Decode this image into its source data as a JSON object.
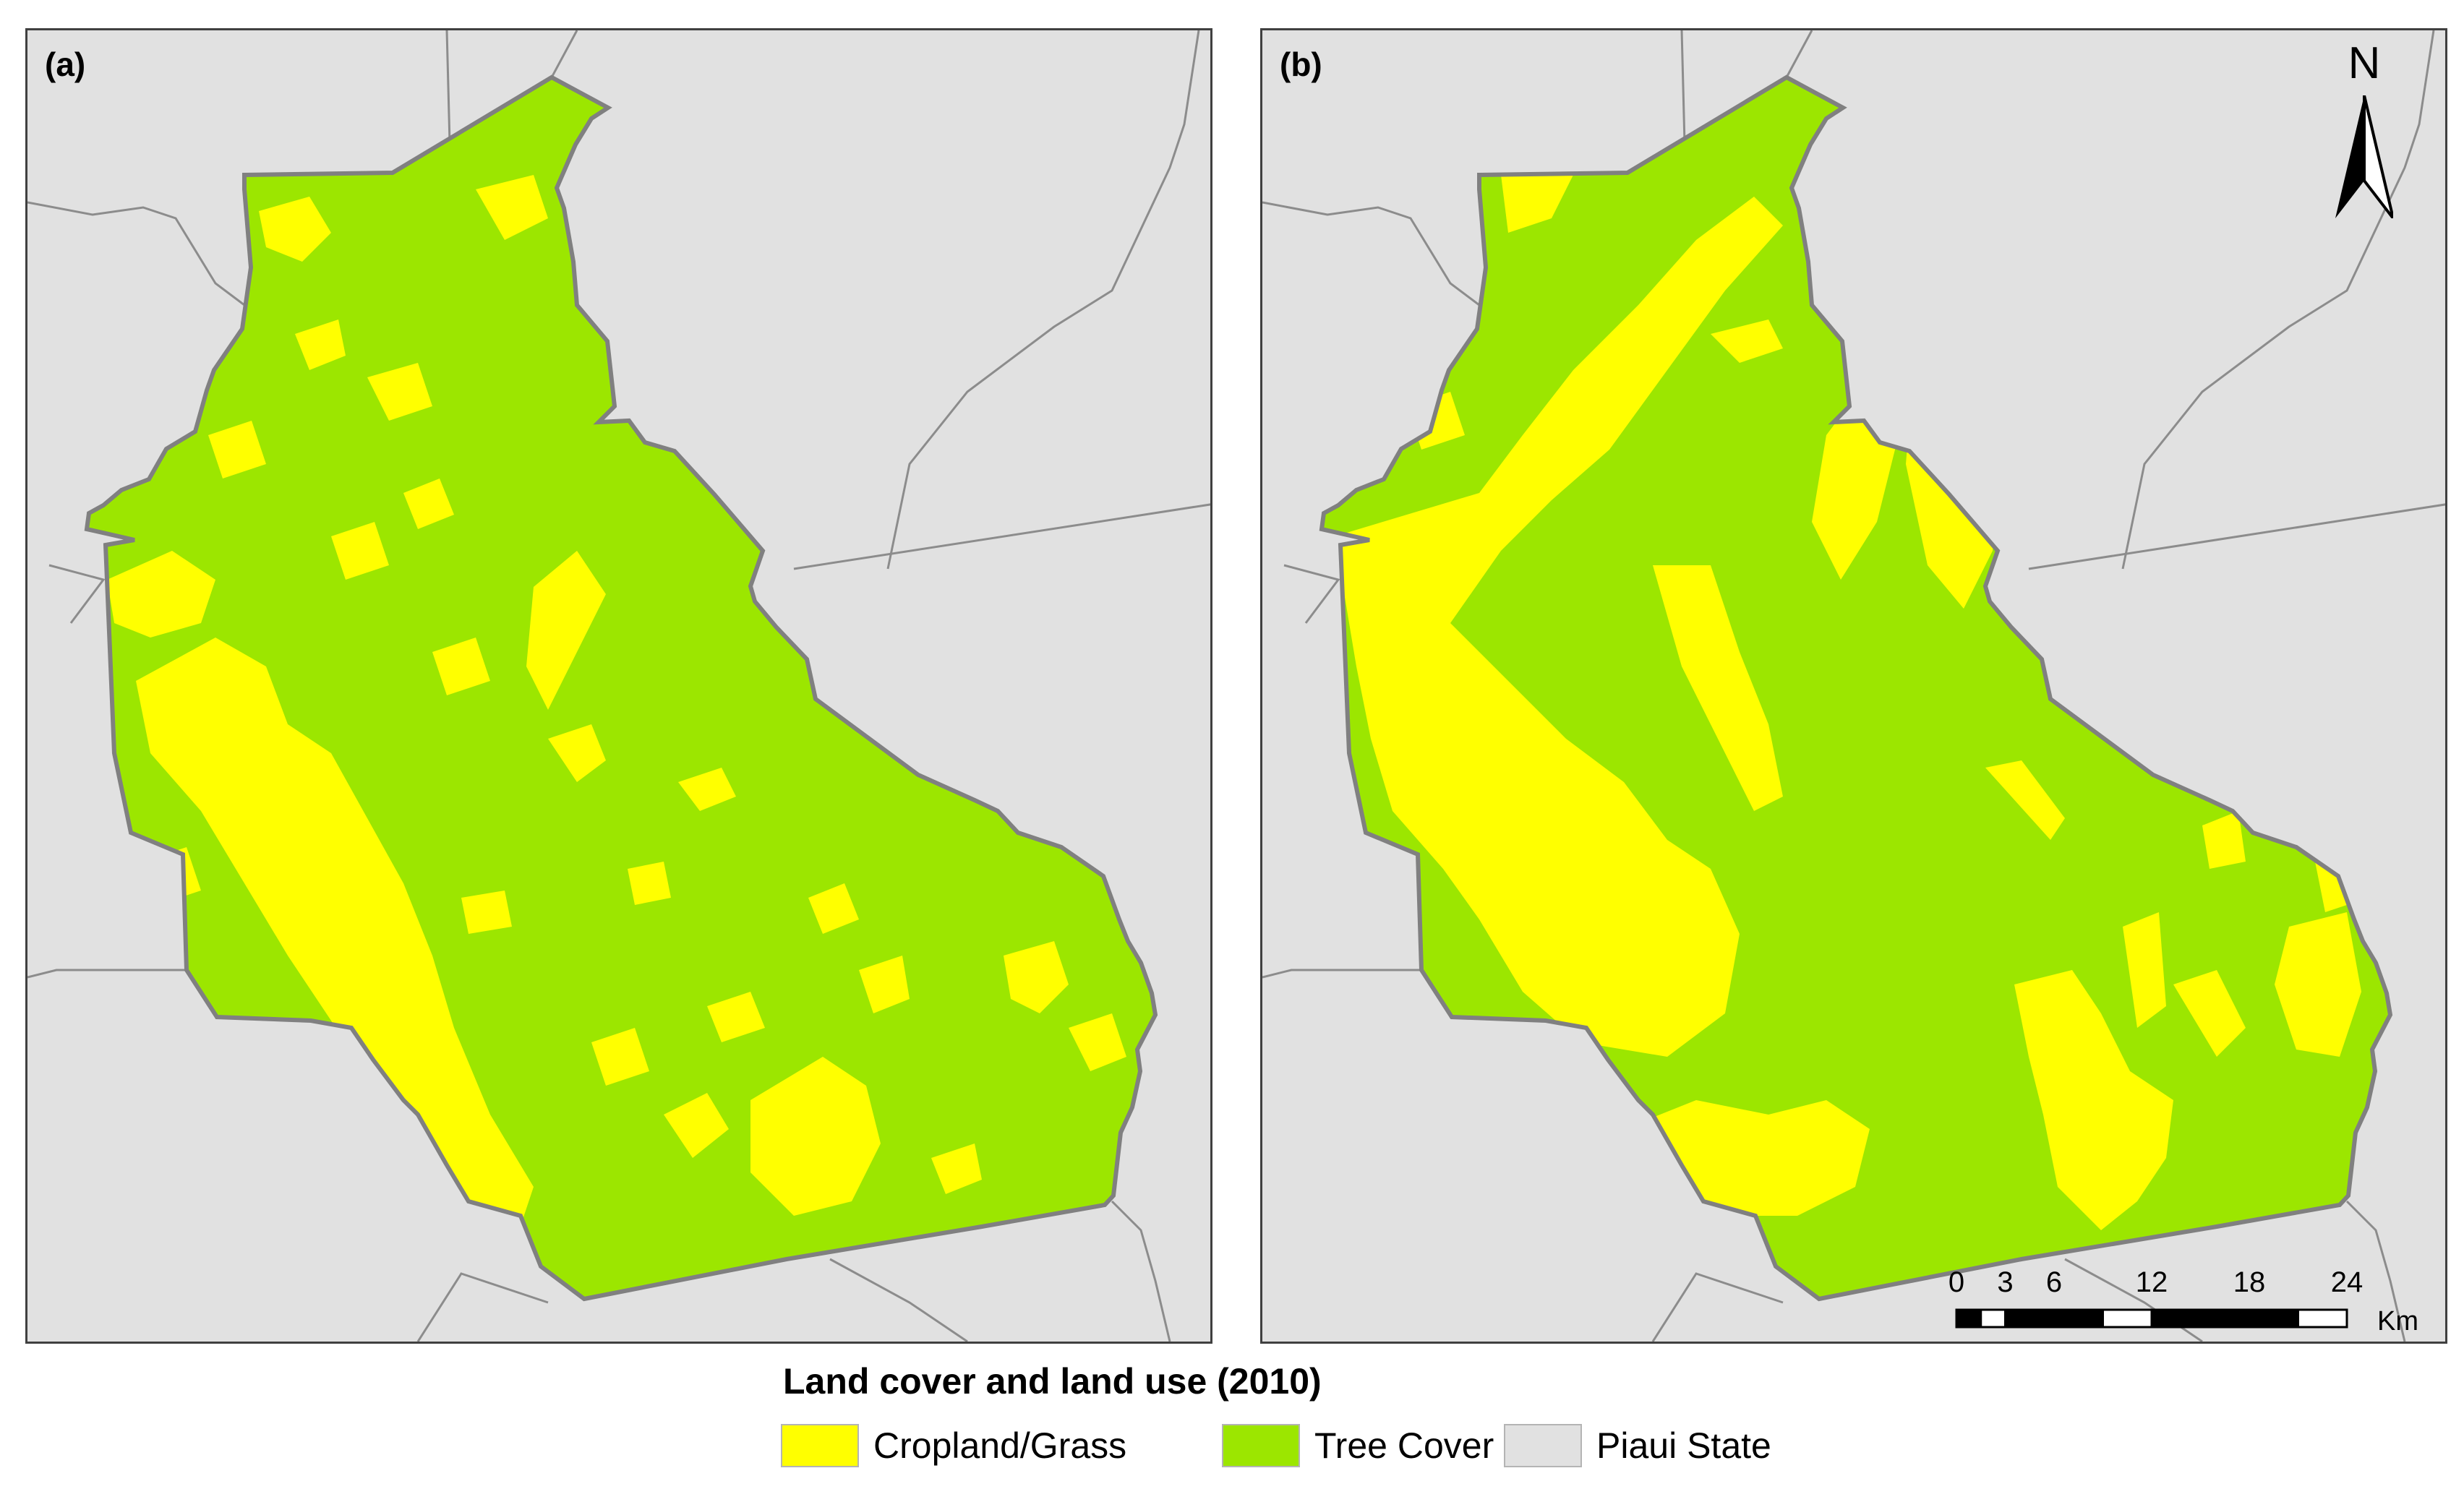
{
  "panels": [
    {
      "label": "(a)"
    },
    {
      "label": "(b)"
    }
  ],
  "north_arrow": {
    "letter": "N"
  },
  "scale_bar": {
    "ticks": [
      "0",
      "3",
      "6",
      "12",
      "18",
      "24"
    ],
    "unit": "Km"
  },
  "legend": {
    "title": "Land cover and land use (2010)",
    "items": [
      {
        "label": "Cropland/Grass",
        "color": "#ffff00"
      },
      {
        "label": "Tree Cover",
        "color": "#9ce600"
      },
      {
        "label": "Piaui State",
        "color": "#e1e1e1"
      }
    ]
  },
  "colors": {
    "cropland": "#ffff00",
    "tree_cover": "#9ce600",
    "background": "#e1e1e1",
    "boundary": "#808080",
    "context_lines": "#8c8c8c"
  }
}
